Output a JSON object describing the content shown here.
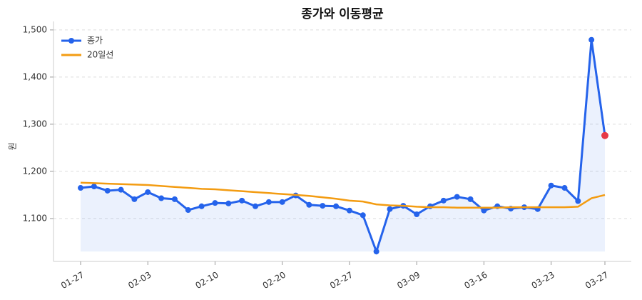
{
  "chart_data": {
    "type": "line",
    "title": "종가와 이동평균",
    "y_label": "원",
    "categories": [
      "01-27",
      null,
      null,
      null,
      null,
      "02-03",
      null,
      null,
      null,
      null,
      "02-10",
      null,
      null,
      null,
      null,
      "02-20",
      null,
      null,
      null,
      null,
      "02-27",
      null,
      null,
      null,
      null,
      "03-09",
      null,
      null,
      null,
      null,
      "03-16",
      null,
      null,
      null,
      null,
      "03-23",
      null,
      null,
      null,
      "03-27"
    ],
    "series": [
      {
        "name": "종가",
        "color": "#2563eb",
        "fill": true,
        "markers": true,
        "last_point_color": "#e63946",
        "values": [
          1165,
          1168,
          1159,
          1161,
          1141,
          1156,
          1143,
          1141,
          1118,
          1126,
          1133,
          1132,
          1138,
          1126,
          1135,
          1135,
          1149,
          1129,
          1127,
          1126,
          1117,
          1107,
          1030,
          1120,
          1127,
          1109,
          1126,
          1138,
          1146,
          1141,
          1117,
          1126,
          1121,
          1124,
          1120,
          1170,
          1165,
          1137,
          1479,
          1276
        ]
      },
      {
        "name": "20일선",
        "color": "#f39c12",
        "fill": false,
        "markers": false,
        "values": [
          1176,
          1175,
          1174,
          1173,
          1172,
          1171,
          1169,
          1167,
          1165,
          1163,
          1162,
          1160,
          1158,
          1156,
          1154,
          1152,
          1150,
          1148,
          1145,
          1142,
          1138,
          1136,
          1130,
          1128,
          1127,
          1125,
          1124,
          1124,
          1123,
          1123,
          1123,
          1123,
          1124,
          1124,
          1124,
          1124,
          1124,
          1125,
          1143,
          1150
        ]
      }
    ],
    "ylim": [
      1009,
      1518
    ],
    "yticks": [
      {
        "value": 1100,
        "label": "1,100"
      },
      {
        "value": 1200,
        "label": "1,200"
      },
      {
        "value": 1300,
        "label": "1,300"
      },
      {
        "value": 1400,
        "label": "1,400"
      },
      {
        "value": 1500,
        "label": "1,500"
      }
    ],
    "grid": true,
    "legend": "upper-left"
  }
}
